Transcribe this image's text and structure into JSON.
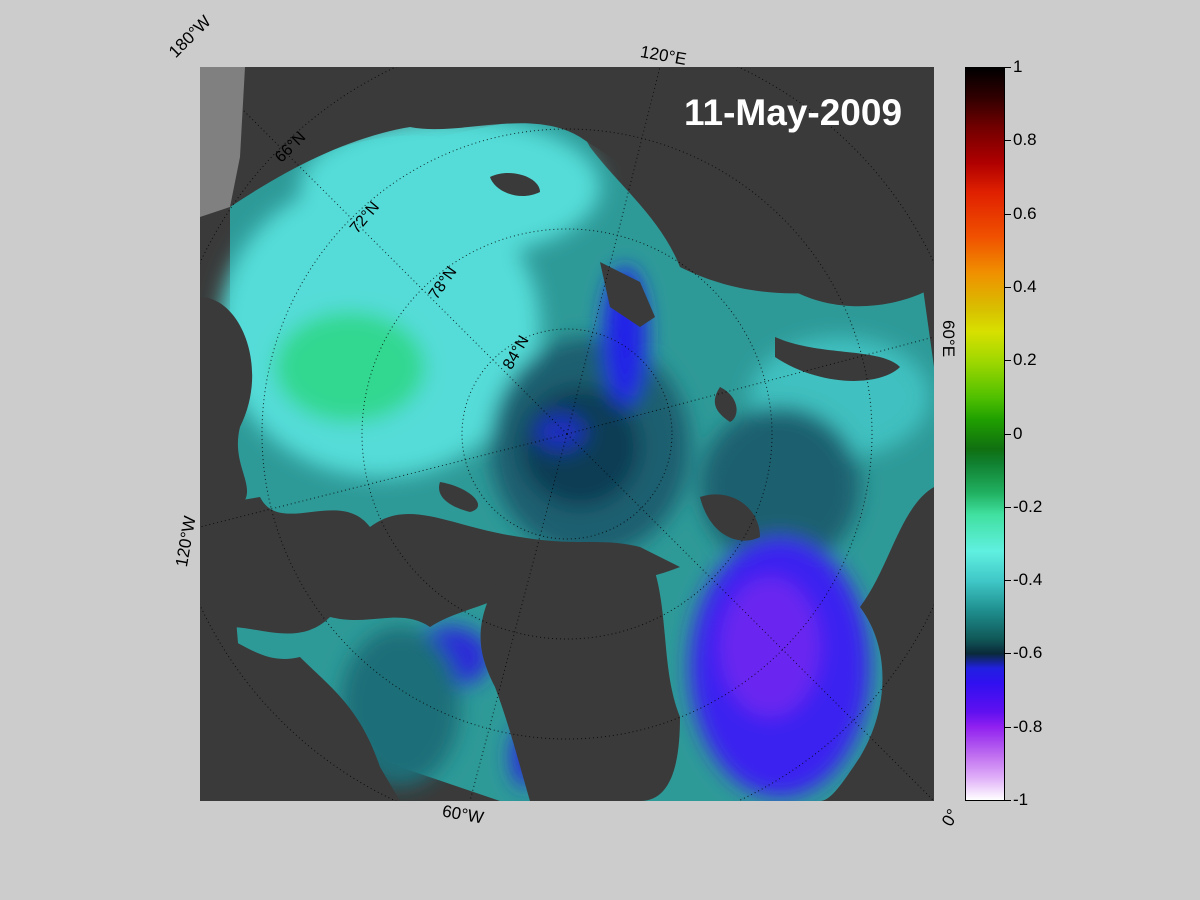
{
  "map": {
    "date": "11-May-2009",
    "edge_labels": {
      "lon_180w": "180°W",
      "lon_120e": "120°E",
      "lon_60e": "60°E",
      "lon_120w": "120°W",
      "lon_60w": "60°W",
      "lon_0": "0°"
    },
    "lat_labels": [
      "66°N",
      "72°N",
      "78°N",
      "84°N"
    ],
    "colors": {
      "land": "#3a3a3a",
      "ice_light": "#55e0d8",
      "ocean_mid": "#2a8c8c",
      "deep": "#0b3a52",
      "blue": "#2020e8",
      "purple": "#5a20f0",
      "green": "#30d890"
    }
  },
  "colorbar": {
    "ticks": [
      "1",
      "0.8",
      "0.6",
      "0.4",
      "0.2",
      "0",
      "-0.2",
      "-0.4",
      "-0.6",
      "-0.8",
      "-1"
    ]
  }
}
